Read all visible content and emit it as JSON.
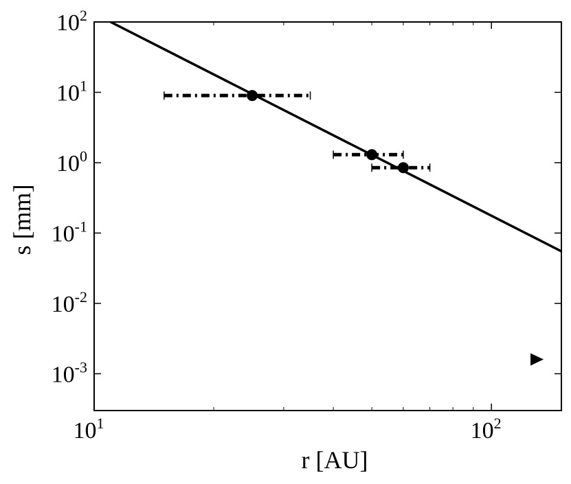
{
  "chart_data": {
    "type": "scatter",
    "xlabel": "r [AU]",
    "ylabel": "s [mm]",
    "xscale": "log",
    "yscale": "log",
    "xlim": [
      10,
      150
    ],
    "ylim": [
      0.0003,
      100
    ],
    "grid": false,
    "x_ticks": [
      {
        "value": 10,
        "base": "10",
        "exp": "1"
      },
      {
        "value": 100,
        "base": "10",
        "exp": "2"
      }
    ],
    "y_ticks": [
      {
        "value": 100,
        "base": "10",
        "exp": "2"
      },
      {
        "value": 10,
        "base": "10",
        "exp": "1"
      },
      {
        "value": 1,
        "base": "10",
        "exp": "0"
      },
      {
        "value": 0.1,
        "base": "10",
        "exp": "-1"
      },
      {
        "value": 0.01,
        "base": "10",
        "exp": "-2"
      },
      {
        "value": 0.001,
        "base": "10",
        "exp": "-3"
      }
    ],
    "points": [
      {
        "x": 25.0,
        "y": 9.0,
        "xerr_low": 15.0,
        "xerr_high": 35.0
      },
      {
        "x": 50.0,
        "y": 1.3,
        "xerr_low": 40.0,
        "xerr_high": 60.0
      },
      {
        "x": 60.0,
        "y": 0.85,
        "xerr_low": 50.0,
        "xerr_high": 70.0
      }
    ],
    "fit_line": {
      "x": [
        11.0,
        150.0
      ],
      "y": [
        100.0,
        0.055
      ]
    },
    "marker_triangle": {
      "x": 130.0,
      "y": 0.0016
    }
  }
}
